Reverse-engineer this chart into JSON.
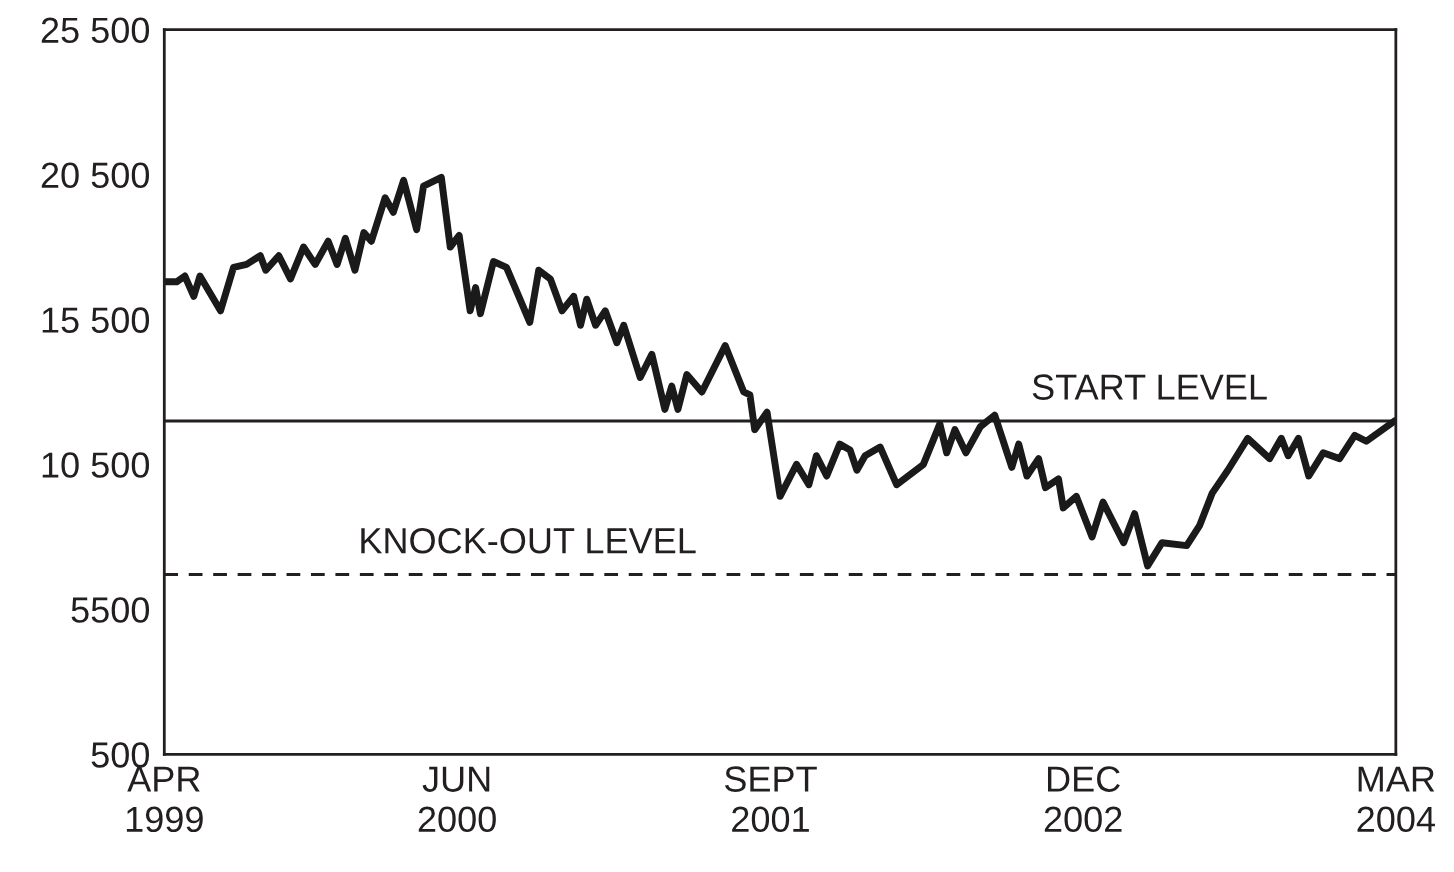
{
  "chart_data": {
    "type": "line",
    "x": [
      "1999-04-01",
      "1999-04-19",
      "1999-05-01",
      "1999-05-14",
      "1999-05-23",
      "1999-06-22",
      "1999-07-11",
      "1999-07-30",
      "1999-08-19",
      "1999-08-27",
      "1999-09-15",
      "1999-10-02",
      "1999-10-21",
      "1999-11-07",
      "1999-11-26",
      "1999-12-09",
      "1999-12-21",
      "2000-01-04",
      "2000-01-17",
      "2000-01-28",
      "2000-02-17",
      "2000-02-29",
      "2000-03-15",
      "2000-04-03",
      "2000-04-13",
      "2000-05-09",
      "2000-05-22",
      "2000-06-04",
      "2000-06-20",
      "2000-06-28",
      "2000-07-05",
      "2000-07-24",
      "2000-08-12",
      "2000-09-15",
      "2000-09-28",
      "2000-10-15",
      "2000-11-01",
      "2000-11-18",
      "2000-11-28",
      "2000-12-07",
      "2000-12-20",
      "2001-01-03",
      "2001-01-20",
      "2001-01-30",
      "2001-02-23",
      "2001-03-12",
      "2001-03-31",
      "2001-04-10",
      "2001-04-19",
      "2001-05-02",
      "2001-05-24",
      "2001-06-27",
      "2001-07-24",
      "2001-08-02",
      "2001-08-09",
      "2001-08-27",
      "2001-09-15",
      "2001-10-09",
      "2001-10-27",
      "2001-11-07",
      "2001-11-22",
      "2001-12-11",
      "2001-12-26",
      "2002-01-05",
      "2002-01-17",
      "2002-02-08",
      "2002-03-04",
      "2002-04-12",
      "2002-05-06",
      "2002-05-16",
      "2002-05-28",
      "2002-06-13",
      "2002-07-04",
      "2002-07-25",
      "2002-08-19",
      "2002-08-29",
      "2002-09-10",
      "2002-09-27",
      "2002-10-07",
      "2002-10-26",
      "2002-11-02",
      "2002-11-21",
      "2002-12-14",
      "2002-12-30",
      "2003-01-29",
      "2003-02-14",
      "2003-03-05",
      "2003-03-26",
      "2003-05-01",
      "2003-05-20",
      "2003-06-07",
      "2003-06-30",
      "2003-07-29",
      "2003-08-30",
      "2003-09-16",
      "2003-09-26",
      "2003-10-11",
      "2003-10-26",
      "2003-11-16",
      "2003-12-10",
      "2004-01-01",
      "2004-01-18",
      "2004-02-28"
    ],
    "series": [
      {
        "color": "#1a1a1a",
        "values": [
          16800,
          16800,
          17000,
          16300,
          17000,
          15800,
          17300,
          17400,
          17700,
          17200,
          17700,
          16900,
          18000,
          17400,
          18200,
          17400,
          18300,
          17200,
          18500,
          18200,
          19700,
          19200,
          20300,
          18600,
          20100,
          20400,
          18000,
          18400,
          15800,
          16600,
          15700,
          17500,
          17300,
          15400,
          17200,
          16900,
          15800,
          16300,
          15300,
          16200,
          15300,
          15800,
          14700,
          15300,
          13500,
          14300,
          12400,
          13200,
          12400,
          13600,
          13000,
          14600,
          13000,
          12900,
          11700,
          12300,
          9400,
          10500,
          9800,
          10800,
          10100,
          11200,
          11000,
          10300,
          10800,
          11100,
          9800,
          10500,
          11900,
          10900,
          11700,
          10900,
          11800,
          12200,
          10400,
          11200,
          10100,
          10700,
          9700,
          10000,
          9000,
          9400,
          8000,
          9200,
          7800,
          8800,
          7000,
          7800,
          7700,
          8400,
          9500,
          10300,
          11400,
          10700,
          11400,
          10800,
          11400,
          10100,
          10900,
          10700,
          11500,
          11300,
          12000
        ]
      }
    ],
    "xlim": [
      "1999-04",
      "2004-03"
    ],
    "xticks": [
      {
        "value": "1999-04",
        "label": "APR\n1999"
      },
      {
        "value": "2000-06",
        "label": "JUN\n2000"
      },
      {
        "value": "2001-09",
        "label": "SEPT\n2001"
      },
      {
        "value": "2002-12",
        "label": "DEC\n2002"
      },
      {
        "value": "2004-03",
        "label": "MAR\n2004"
      }
    ],
    "ylim": [
      500,
      25500
    ],
    "yticks": [
      500,
      5500,
      {
        "value": 10500,
        "label": "10 500"
      },
      {
        "value": 15500,
        "label": "15 500"
      },
      {
        "value": 20500,
        "label": "20 500"
      },
      {
        "value": 25500,
        "label": "25 500"
      }
    ],
    "ref_lines": [
      {
        "axis": "y",
        "value": 12000,
        "label": "START LEVEL",
        "color": "#231f20",
        "line_style": "solid"
      },
      {
        "axis": "y",
        "value": 6700,
        "label": "KNOCK-OUT LEVEL",
        "color": "#231f20",
        "line_style": "dashed"
      }
    ],
    "grid": false
  }
}
